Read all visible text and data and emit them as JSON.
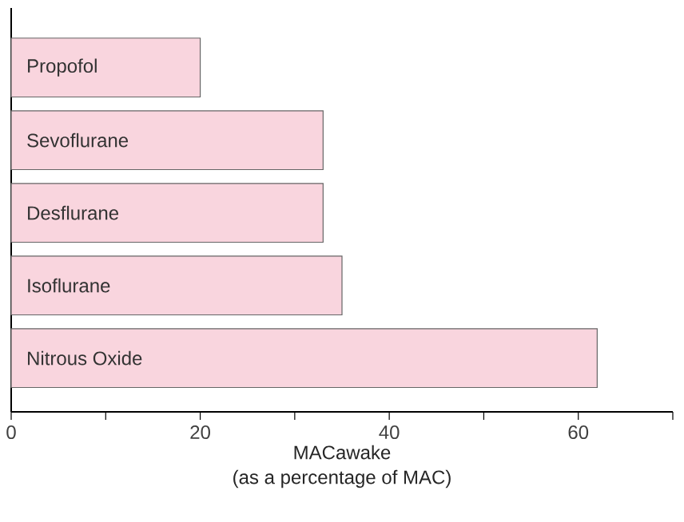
{
  "chart_data": {
    "type": "bar",
    "orientation": "horizontal",
    "categories": [
      "Propofol",
      "Sevoflurane",
      "Desflurane",
      "Isoflurane",
      "Nitrous Oxide"
    ],
    "values": [
      20,
      33,
      33,
      35,
      62
    ],
    "color": "#f9d5de",
    "xlim": [
      0,
      70
    ],
    "xticks": [
      0,
      {
        "value": 10,
        "label": null
      },
      20,
      {
        "value": 30,
        "label": null
      },
      40,
      {
        "value": 50,
        "label": null
      },
      60,
      {
        "value": 70,
        "label": null
      }
    ],
    "xlabel": "MACawake",
    "annotations": [
      "(as a percentage of MAC)"
    ],
    "grid": false
  }
}
